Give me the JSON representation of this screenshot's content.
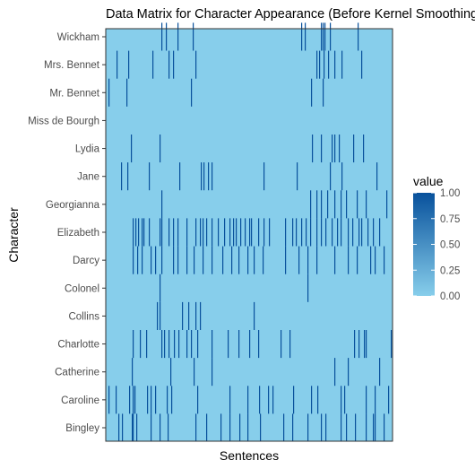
{
  "chart_data": {
    "type": "heatmap",
    "title": "Data Matrix for Character Appearance (Before Kernel Smoothing)",
    "xlabel": "Sentences",
    "ylabel": "Character",
    "x_range": [
      0,
      320
    ],
    "categories": [
      "Bingley",
      "Caroline",
      "Catherine",
      "Charlotte",
      "Collins",
      "Colonel",
      "Darcy",
      "Elizabeth",
      "Georgianna",
      "Jane",
      "Lydia",
      "Miss de Bourgh",
      "Mr. Bennet",
      "Mrs. Bennet",
      "Wickham"
    ],
    "colorbar": {
      "title": "value",
      "range": [
        0,
        1
      ],
      "ticks": [
        "0.00",
        "0.25",
        "0.50",
        "0.75",
        "1.00"
      ],
      "low_color": "#87ceeb",
      "high_color": "#08519c"
    },
    "legend_position": "right",
    "grid": false,
    "series": [
      {
        "name": "Wickham",
        "x": [
          62,
          67,
          80,
          97,
          218,
          222,
          240,
          242,
          244,
          250,
          281
        ]
      },
      {
        "name": "Mrs. Bennet",
        "x": [
          12,
          25,
          52,
          70,
          75,
          100,
          235,
          238,
          243,
          248,
          255,
          263,
          285
        ]
      },
      {
        "name": "Mr. Bennet",
        "x": [
          3,
          23,
          95,
          229,
          242
        ]
      },
      {
        "name": "Miss de Bourgh",
        "x": []
      },
      {
        "name": "Lydia",
        "x": [
          28,
          60,
          230,
          240,
          252,
          255,
          260,
          276,
          287
        ]
      },
      {
        "name": "Jane",
        "x": [
          17,
          24,
          48,
          82,
          106,
          109,
          114,
          118,
          176,
          213,
          250,
          263,
          302
        ]
      },
      {
        "name": "Georgianna",
        "x": [
          62,
          228,
          235,
          240,
          247,
          255,
          262,
          268,
          280,
          290,
          313
        ]
      },
      {
        "name": "Elizabeth",
        "x": [
          30,
          33,
          36,
          40,
          42,
          48,
          60,
          62,
          70,
          75,
          80,
          90,
          100,
          105,
          108,
          112,
          118,
          125,
          132,
          138,
          142,
          145,
          150,
          155,
          160,
          162,
          170,
          176,
          182,
          200,
          208,
          212,
          218,
          223,
          228,
          235,
          240,
          245,
          252,
          258,
          262,
          270,
          275,
          282,
          285,
          292,
          298,
          305
        ]
      },
      {
        "name": "Darcy",
        "x": [
          30,
          35,
          40,
          50,
          55,
          62,
          75,
          80,
          90,
          98,
          108,
          118,
          130,
          140,
          148,
          158,
          165,
          175,
          200,
          215,
          225,
          235,
          255,
          270,
          280,
          295,
          300,
          310
        ]
      },
      {
        "name": "Colonel",
        "x": [
          60,
          225
        ]
      },
      {
        "name": "Collins",
        "x": [
          57,
          60,
          85,
          92,
          100,
          105,
          165
        ]
      },
      {
        "name": "Charlotte",
        "x": [
          30,
          38,
          45,
          62,
          65,
          70,
          76,
          81,
          90,
          95,
          102,
          118,
          136,
          148,
          160,
          170,
          195,
          205,
          277,
          282,
          288,
          290,
          318
        ]
      },
      {
        "name": "Catherine",
        "x": [
          29,
          72,
          98,
          118,
          255,
          270,
          305
        ]
      },
      {
        "name": "Caroline",
        "x": [
          3,
          11,
          26,
          30,
          32,
          46,
          50,
          55,
          68,
          73,
          102,
          138,
          158,
          171,
          181,
          186,
          209,
          229,
          236,
          262,
          266,
          290,
          300,
          315
        ]
      },
      {
        "name": "Bingley",
        "x": [
          14,
          18,
          29,
          30,
          34,
          50,
          60,
          69,
          100,
          112,
          128,
          138,
          149,
          158,
          172,
          198,
          208,
          225,
          240,
          245,
          262,
          268,
          278,
          290,
          298,
          300,
          310
        ]
      }
    ]
  }
}
